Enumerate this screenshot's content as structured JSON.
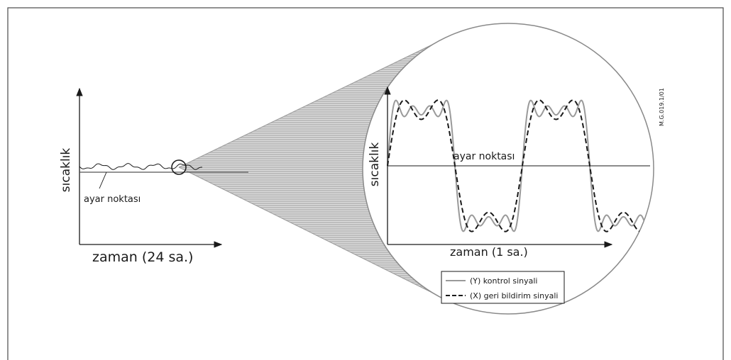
{
  "left_chart": {
    "ylabel": "sıcaklık",
    "xlabel": "zaman (24 sa.)",
    "setpoint_label": "ayar noktası"
  },
  "right_chart": {
    "ylabel": "sıcaklık",
    "xlabel": "zaman (1 sa.)",
    "setpoint_label": "ayar noktası",
    "legend": {
      "control": "(Y) kontrol sinyali",
      "feedback": "(X) geri bildirim sinyali"
    }
  },
  "figure_code": "M.G.019.1/01",
  "colors": {
    "frame": "#4a4a4a",
    "axis": "#1a1a1a",
    "zoom_fill": "#b9b9b9",
    "control_signal": "#9a9a9a",
    "feedback_signal": "#1a1a1a"
  }
}
